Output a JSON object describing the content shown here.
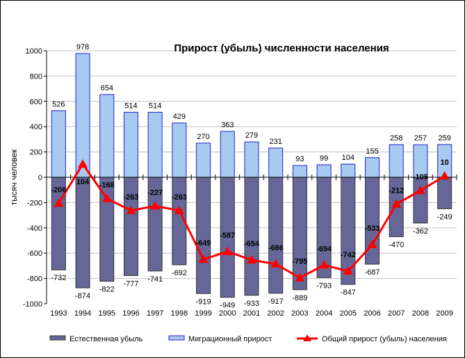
{
  "chart_data": {
    "type": "bar",
    "title": "Прирост (убыль) численности населения",
    "ylabel": "тысяч человек",
    "xlabel": "",
    "ylim": [
      -1000,
      1000
    ],
    "yticks": [
      -1000,
      -800,
      -600,
      -400,
      -200,
      0,
      200,
      400,
      600,
      800,
      1000
    ],
    "grid": true,
    "legend_position": "bottom",
    "categories": [
      "1993",
      "1994",
      "1995",
      "1996",
      "1997",
      "1998",
      "1999",
      "2000",
      "2001",
      "2002",
      "2003",
      "2004",
      "2005",
      "2006",
      "2007",
      "2008",
      "2009"
    ],
    "series": [
      {
        "name": "Естественная убыль",
        "type": "bar",
        "color": "#666699",
        "values": [
          -732,
          -874,
          -822,
          -777,
          -741,
          -692,
          -919,
          -949,
          -933,
          -917,
          -889,
          -793,
          -847,
          -687,
          -470,
          -362,
          -249
        ]
      },
      {
        "name": "Миграционный прирост",
        "type": "bar",
        "color": "#A6CAF0",
        "values": [
          526,
          978,
          654,
          514,
          514,
          429,
          270,
          363,
          279,
          231,
          93,
          99,
          104,
          155,
          258,
          257,
          259
        ]
      },
      {
        "name": "Общий прирост (убыль) населения",
        "type": "line",
        "color": "#FF0000",
        "values": [
          -206,
          104,
          -168,
          -263,
          -227,
          -263,
          -649,
          -587,
          -654,
          -686,
          -795,
          -694,
          -742,
          -533,
          -212,
          -105,
          10
        ]
      }
    ]
  }
}
